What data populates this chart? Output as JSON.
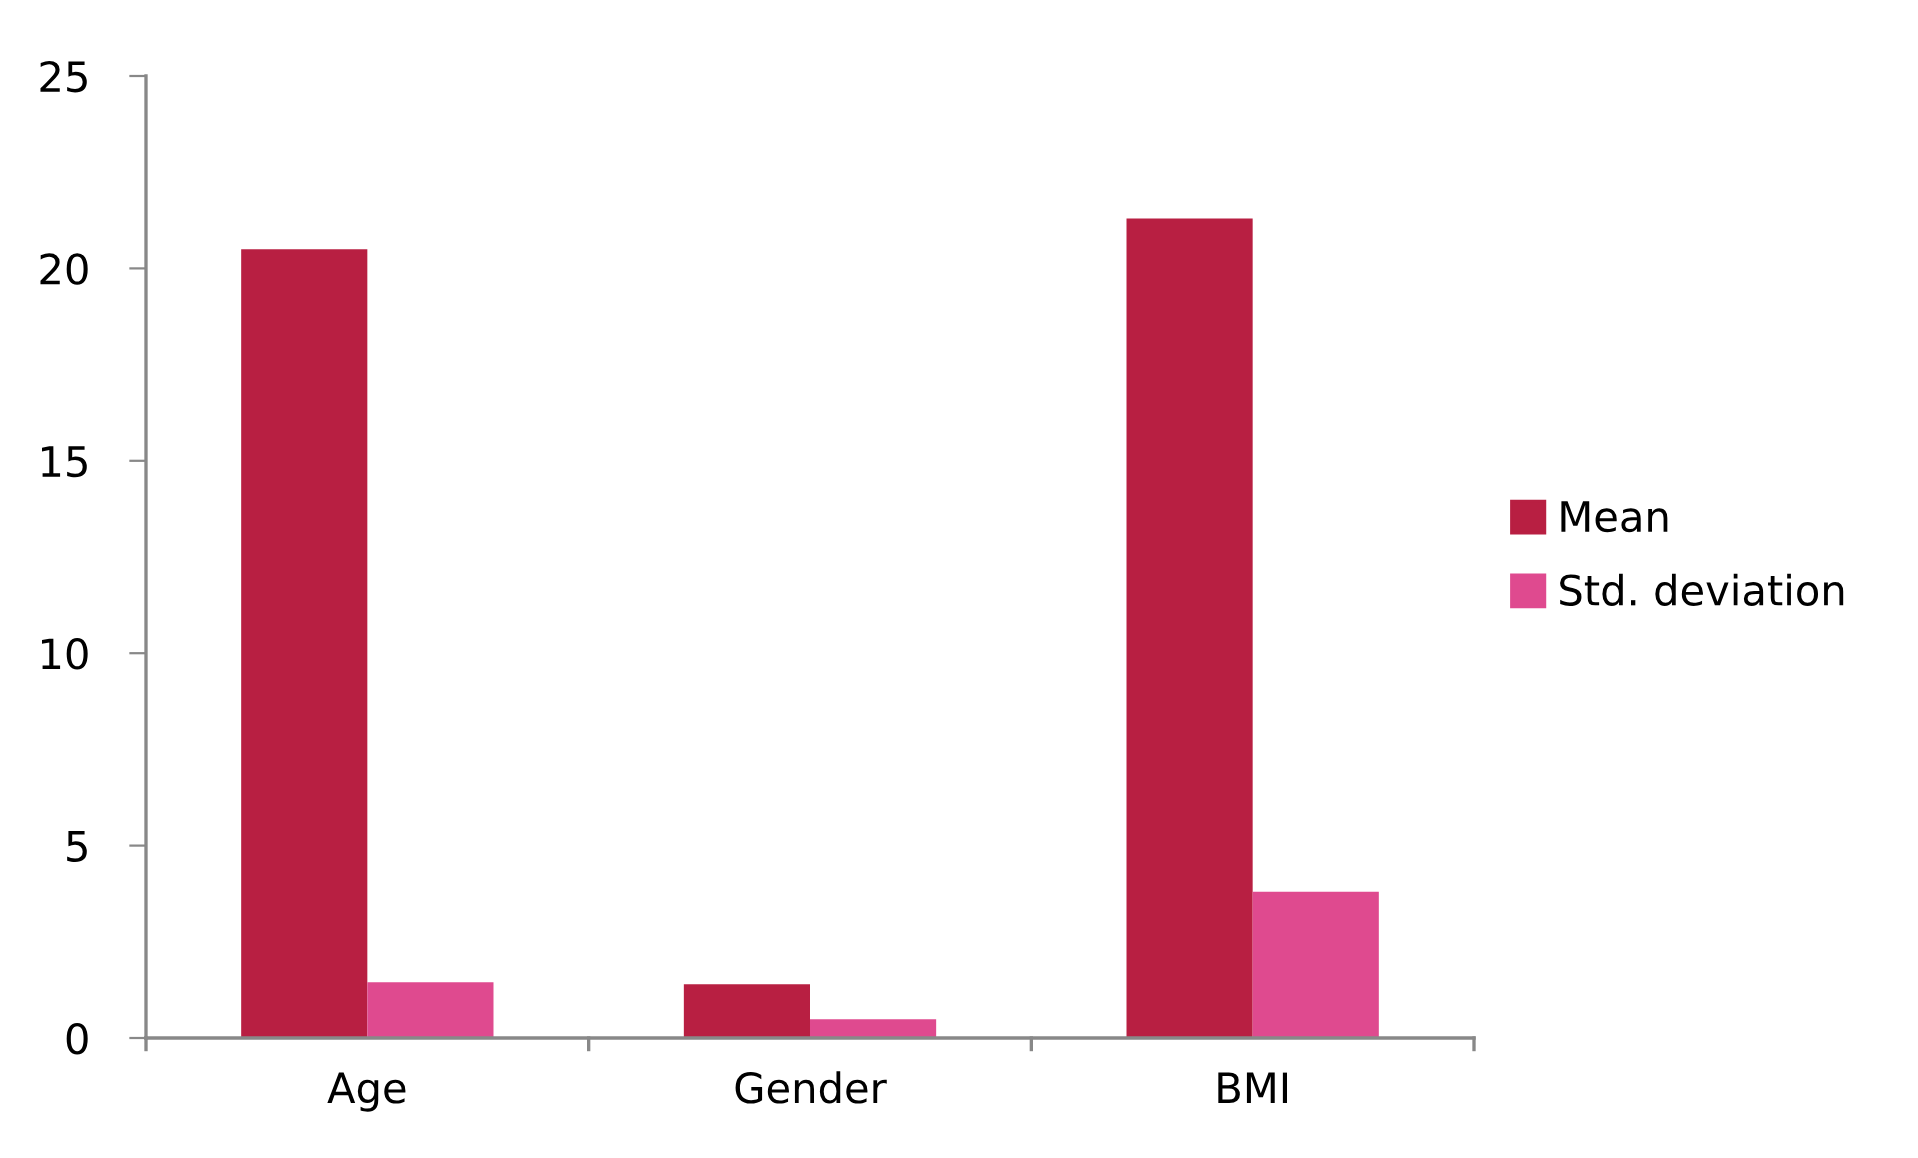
{
  "chart_data": {
    "type": "bar",
    "categories": [
      "Age",
      "Gender",
      "BMI"
    ],
    "series": [
      {
        "name": "Mean",
        "color": "#b81f42",
        "values": [
          20.5,
          1.4,
          21.3
        ]
      },
      {
        "name": "Std. deviation",
        "color": "#df4a8f",
        "values": [
          1.45,
          0.49,
          3.8
        ]
      }
    ],
    "ylim": [
      0,
      25
    ],
    "yticks": [
      0,
      5,
      10,
      15,
      20,
      25
    ],
    "grid": false,
    "legend": "right"
  }
}
